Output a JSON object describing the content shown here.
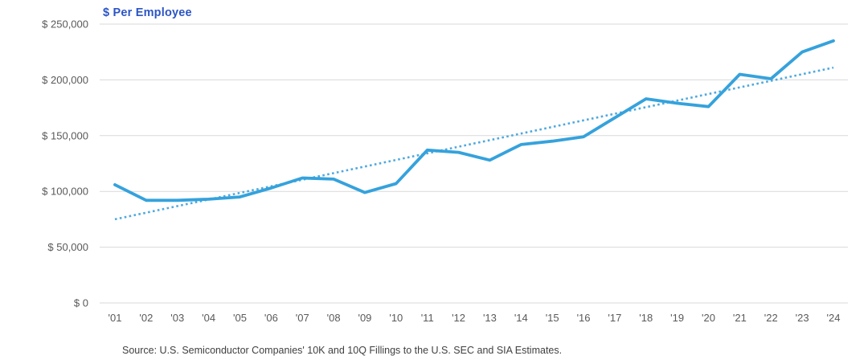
{
  "title": "$ Per Employee",
  "source": "Source: U.S. Semiconductor Companies' 10K and 10Q Fillings to the U.S. SEC and SIA Estimates.",
  "colors": {
    "line": "#35a2dc",
    "trend": "#4fa9de",
    "title_text": "#2b55c6",
    "grid": "#d9d9d9",
    "axis_text": "#595959",
    "source_text": "#404040"
  },
  "chart_data": {
    "type": "line",
    "title": "$ Per Employee",
    "categories": [
      "'01",
      "'02",
      "'03",
      "'04",
      "'05",
      "'06",
      "'07",
      "'08",
      "'09",
      "'10",
      "'11",
      "'12",
      "'13",
      "'14",
      "'15",
      "'16",
      "'17",
      "'18",
      "'19",
      "'20",
      "'21",
      "'22",
      "'23",
      "'24"
    ],
    "series": [
      {
        "name": "$ Per Employee",
        "style": "solid",
        "values": [
          106000,
          92000,
          92000,
          93000,
          95000,
          103000,
          112000,
          111000,
          99000,
          107000,
          137000,
          135000,
          128000,
          142000,
          145000,
          149000,
          166000,
          183000,
          179000,
          176000,
          205000,
          201000,
          225000,
          235000
        ]
      },
      {
        "name": "Linear trend",
        "style": "dotted",
        "trend_start": 75000,
        "trend_end": 211000
      }
    ],
    "xlabel": "",
    "ylabel": "",
    "ylim": [
      0,
      250000
    ],
    "y_ticks": [
      {
        "value": 250000,
        "label": "$ 250,000"
      },
      {
        "value": 200000,
        "label": "$ 200,000"
      },
      {
        "value": 150000,
        "label": "$ 150,000"
      },
      {
        "value": 100000,
        "label": "$ 100,000"
      },
      {
        "value": 50000,
        "label": "$ 50,000"
      },
      {
        "value": 0,
        "label": "$ 0"
      }
    ],
    "grid": "horizontal",
    "legend": "none"
  }
}
